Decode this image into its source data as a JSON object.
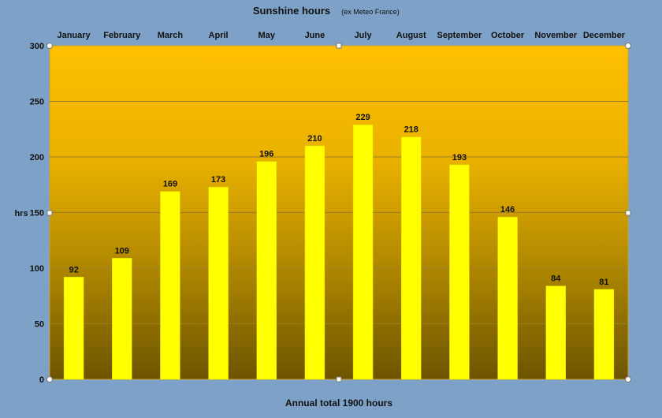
{
  "chart_data": {
    "type": "bar",
    "title": "Sunshine hours",
    "subtitle": "(ex Meteo France)",
    "ylabel": "hrs",
    "xlabel": "",
    "footer": "Annual total 1900 hours",
    "categories": [
      "January",
      "February",
      "March",
      "April",
      "May",
      "June",
      "July",
      "August",
      "September",
      "October",
      "November",
      "December"
    ],
    "values": [
      92,
      109,
      169,
      173,
      196,
      210,
      229,
      218,
      193,
      146,
      84,
      81
    ],
    "ylim": [
      0,
      300
    ],
    "yticks": [
      0,
      50,
      100,
      150,
      200,
      250,
      300
    ],
    "category_axis_position": "top",
    "grid": true,
    "legend": "none",
    "colors": {
      "bar": "#ffff00",
      "bar_edge": "#d8d800",
      "plot_top": "#ffc000",
      "plot_bottom": "#6e5400",
      "page_background": "#7ea2c7",
      "gridline": "#9a7d2a"
    }
  }
}
